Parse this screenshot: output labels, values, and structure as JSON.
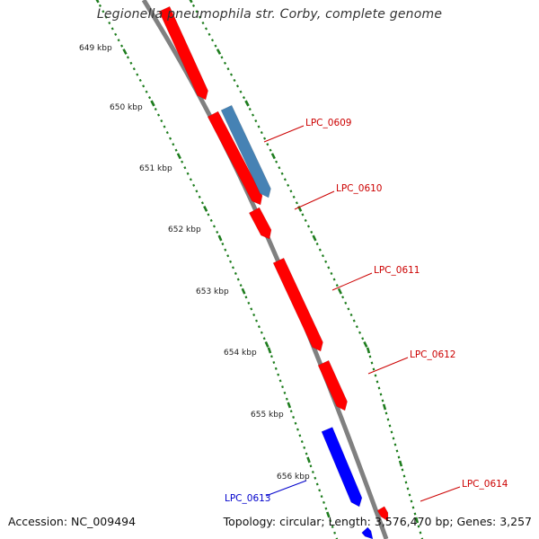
{
  "title": "Legionella pneumophila str. Corby, complete genome",
  "accession": "Accession: NC_009494",
  "summary": "Topology: circular; Length: 3,576,470 bp; Genes: 3,257",
  "colors": {
    "forward_gene": "#ff0000",
    "reverse_gene": "#0000ff",
    "highlight_gene": "#4682b4",
    "backbone": "#808080",
    "ticks": "#1e7d1e",
    "forward_label": "#cc0000",
    "reverse_label": "#0000cc"
  },
  "scale_labels": [
    "649 kbp",
    "650 kbp",
    "651 kbp",
    "652 kbp",
    "653 kbp",
    "654 kbp",
    "655 kbp",
    "656 kbp"
  ],
  "genes": [
    {
      "label": "LPC_0609",
      "strand": "forward",
      "highlight": true
    },
    {
      "label": "LPC_0610",
      "strand": "forward"
    },
    {
      "label": "LPC_0611",
      "strand": "forward"
    },
    {
      "label": "LPC_0612",
      "strand": "forward"
    },
    {
      "label": "LPC_0613",
      "strand": "reverse"
    },
    {
      "label": "LPC_0614",
      "strand": "forward"
    }
  ]
}
